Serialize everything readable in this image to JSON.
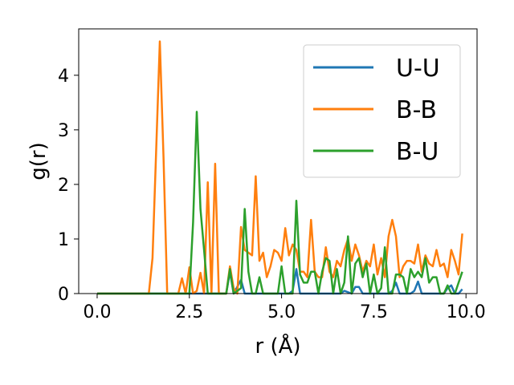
{
  "chart_data": {
    "type": "line",
    "title": "",
    "xlabel": "r (Å)",
    "ylabel": "g(r)",
    "xlim": [
      -0.5,
      10.3
    ],
    "ylim": [
      0,
      4.85
    ],
    "xticks": [
      0.0,
      2.5,
      5.0,
      7.5,
      10.0
    ],
    "xtick_labels": [
      "0.0",
      "2.5",
      "5.0",
      "7.5",
      "10.0"
    ],
    "yticks": [
      0,
      1,
      2,
      3,
      4
    ],
    "ytick_labels": [
      "0",
      "1",
      "2",
      "3",
      "4"
    ],
    "grid": false,
    "legend": "top-right",
    "series": [
      {
        "name": "U-U",
        "color": "#1f77b4",
        "points": [
          [
            0.0,
            0
          ],
          [
            3.5,
            0
          ],
          [
            3.6,
            0.4
          ],
          [
            3.7,
            0
          ],
          [
            3.9,
            0.25
          ],
          [
            4.0,
            0
          ],
          [
            5.2,
            0
          ],
          [
            5.3,
            0.05
          ],
          [
            5.4,
            0.45
          ],
          [
            5.5,
            0
          ],
          [
            6.6,
            0
          ],
          [
            6.7,
            0.05
          ],
          [
            6.9,
            0
          ],
          [
            7.0,
            0.12
          ],
          [
            7.1,
            0.12
          ],
          [
            7.2,
            0
          ],
          [
            7.9,
            0
          ],
          [
            8.0,
            0.05
          ],
          [
            8.1,
            0.2
          ],
          [
            8.2,
            0
          ],
          [
            8.5,
            0
          ],
          [
            8.6,
            0.05
          ],
          [
            8.7,
            0.22
          ],
          [
            8.8,
            0
          ],
          [
            9.4,
            0
          ],
          [
            9.5,
            0.1
          ],
          [
            9.6,
            0.15
          ],
          [
            9.7,
            0
          ],
          [
            9.8,
            0
          ],
          [
            9.9,
            0.08
          ]
        ]
      },
      {
        "name": "B-B",
        "color": "#ff7f0e",
        "points": [
          [
            0.0,
            0
          ],
          [
            1.4,
            0
          ],
          [
            1.5,
            0.65
          ],
          [
            1.6,
            2.6
          ],
          [
            1.7,
            4.62
          ],
          [
            1.8,
            2.5
          ],
          [
            1.9,
            0
          ],
          [
            2.2,
            0
          ],
          [
            2.3,
            0.28
          ],
          [
            2.4,
            0
          ],
          [
            2.5,
            0.48
          ],
          [
            2.6,
            0
          ],
          [
            2.7,
            0.05
          ],
          [
            2.8,
            0.38
          ],
          [
            2.9,
            0
          ],
          [
            3.0,
            2.04
          ],
          [
            3.1,
            0
          ],
          [
            3.2,
            2.38
          ],
          [
            3.3,
            0
          ],
          [
            3.5,
            0
          ],
          [
            3.6,
            0.5
          ],
          [
            3.7,
            0.1
          ],
          [
            3.8,
            0
          ],
          [
            3.9,
            1.22
          ],
          [
            4.0,
            0.8
          ],
          [
            4.1,
            0.75
          ],
          [
            4.2,
            0.7
          ],
          [
            4.3,
            2.15
          ],
          [
            4.4,
            0.6
          ],
          [
            4.5,
            0.75
          ],
          [
            4.6,
            0.3
          ],
          [
            4.7,
            0.5
          ],
          [
            4.8,
            0.8
          ],
          [
            4.9,
            0.75
          ],
          [
            5.0,
            0.6
          ],
          [
            5.1,
            1.2
          ],
          [
            5.2,
            0.7
          ],
          [
            5.3,
            0.9
          ],
          [
            5.4,
            0.8
          ],
          [
            5.5,
            0.4
          ],
          [
            5.6,
            0.4
          ],
          [
            5.7,
            0.3
          ],
          [
            5.8,
            1.35
          ],
          [
            5.9,
            0.4
          ],
          [
            6.0,
            0.3
          ],
          [
            6.1,
            0.3
          ],
          [
            6.2,
            0.85
          ],
          [
            6.3,
            0.4
          ],
          [
            6.4,
            0.3
          ],
          [
            6.5,
            0.6
          ],
          [
            6.6,
            0.5
          ],
          [
            6.7,
            0.8
          ],
          [
            6.8,
            1.0
          ],
          [
            6.9,
            0.6
          ],
          [
            7.0,
            0.9
          ],
          [
            7.1,
            0.7
          ],
          [
            7.2,
            0.4
          ],
          [
            7.3,
            0.6
          ],
          [
            7.4,
            0.5
          ],
          [
            7.5,
            0.9
          ],
          [
            7.6,
            0.35
          ],
          [
            7.7,
            0.65
          ],
          [
            7.8,
            0.3
          ],
          [
            7.9,
            1.05
          ],
          [
            8.0,
            1.35
          ],
          [
            8.1,
            1.05
          ],
          [
            8.2,
            0.3
          ],
          [
            8.3,
            0.5
          ],
          [
            8.4,
            0.6
          ],
          [
            8.5,
            0.6
          ],
          [
            8.6,
            0.55
          ],
          [
            8.7,
            0.9
          ],
          [
            8.8,
            0.4
          ],
          [
            8.9,
            0.7
          ],
          [
            9.0,
            0.55
          ],
          [
            9.1,
            0.5
          ],
          [
            9.2,
            0.8
          ],
          [
            9.3,
            0.5
          ],
          [
            9.4,
            0.55
          ],
          [
            9.5,
            0.3
          ],
          [
            9.6,
            0.8
          ],
          [
            9.7,
            0.6
          ],
          [
            9.8,
            0.35
          ],
          [
            9.9,
            1.1
          ]
        ]
      },
      {
        "name": "B-U",
        "color": "#2ca02c",
        "points": [
          [
            0.0,
            0
          ],
          [
            2.5,
            0
          ],
          [
            2.6,
            1.3
          ],
          [
            2.7,
            3.33
          ],
          [
            2.8,
            1.55
          ],
          [
            2.9,
            0.8
          ],
          [
            3.0,
            0
          ],
          [
            3.5,
            0
          ],
          [
            3.6,
            0.45
          ],
          [
            3.7,
            0
          ],
          [
            3.9,
            0.1
          ],
          [
            4.0,
            1.55
          ],
          [
            4.1,
            0.4
          ],
          [
            4.2,
            0
          ],
          [
            4.3,
            0
          ],
          [
            4.4,
            0.3
          ],
          [
            4.5,
            0
          ],
          [
            4.9,
            0
          ],
          [
            5.0,
            0.5
          ],
          [
            5.1,
            0
          ],
          [
            5.3,
            0
          ],
          [
            5.4,
            1.7
          ],
          [
            5.5,
            0.35
          ],
          [
            5.6,
            0.2
          ],
          [
            5.7,
            0.2
          ],
          [
            5.8,
            0.4
          ],
          [
            5.9,
            0.4
          ],
          [
            6.0,
            0
          ],
          [
            6.1,
            0.4
          ],
          [
            6.2,
            0.65
          ],
          [
            6.3,
            0.6
          ],
          [
            6.4,
            0
          ],
          [
            6.5,
            0.45
          ],
          [
            6.6,
            0
          ],
          [
            6.7,
            0.2
          ],
          [
            6.8,
            1.05
          ],
          [
            6.9,
            0
          ],
          [
            7.0,
            0.55
          ],
          [
            7.1,
            0.65
          ],
          [
            7.2,
            0.3
          ],
          [
            7.3,
            0.55
          ],
          [
            7.4,
            0
          ],
          [
            7.5,
            0.35
          ],
          [
            7.6,
            0
          ],
          [
            7.7,
            0.1
          ],
          [
            7.8,
            0.85
          ],
          [
            7.9,
            0
          ],
          [
            8.0,
            0
          ],
          [
            8.1,
            0.35
          ],
          [
            8.2,
            0.35
          ],
          [
            8.3,
            0.3
          ],
          [
            8.4,
            0
          ],
          [
            8.5,
            0.45
          ],
          [
            8.6,
            0.3
          ],
          [
            8.7,
            0.4
          ],
          [
            8.8,
            0.3
          ],
          [
            8.9,
            0.65
          ],
          [
            9.0,
            0.2
          ],
          [
            9.1,
            0.3
          ],
          [
            9.2,
            0.3
          ],
          [
            9.3,
            0
          ],
          [
            9.4,
            0
          ],
          [
            9.5,
            0.15
          ],
          [
            9.6,
            0
          ],
          [
            9.7,
            0
          ],
          [
            9.8,
            0.2
          ],
          [
            9.9,
            0.4
          ]
        ]
      }
    ]
  }
}
